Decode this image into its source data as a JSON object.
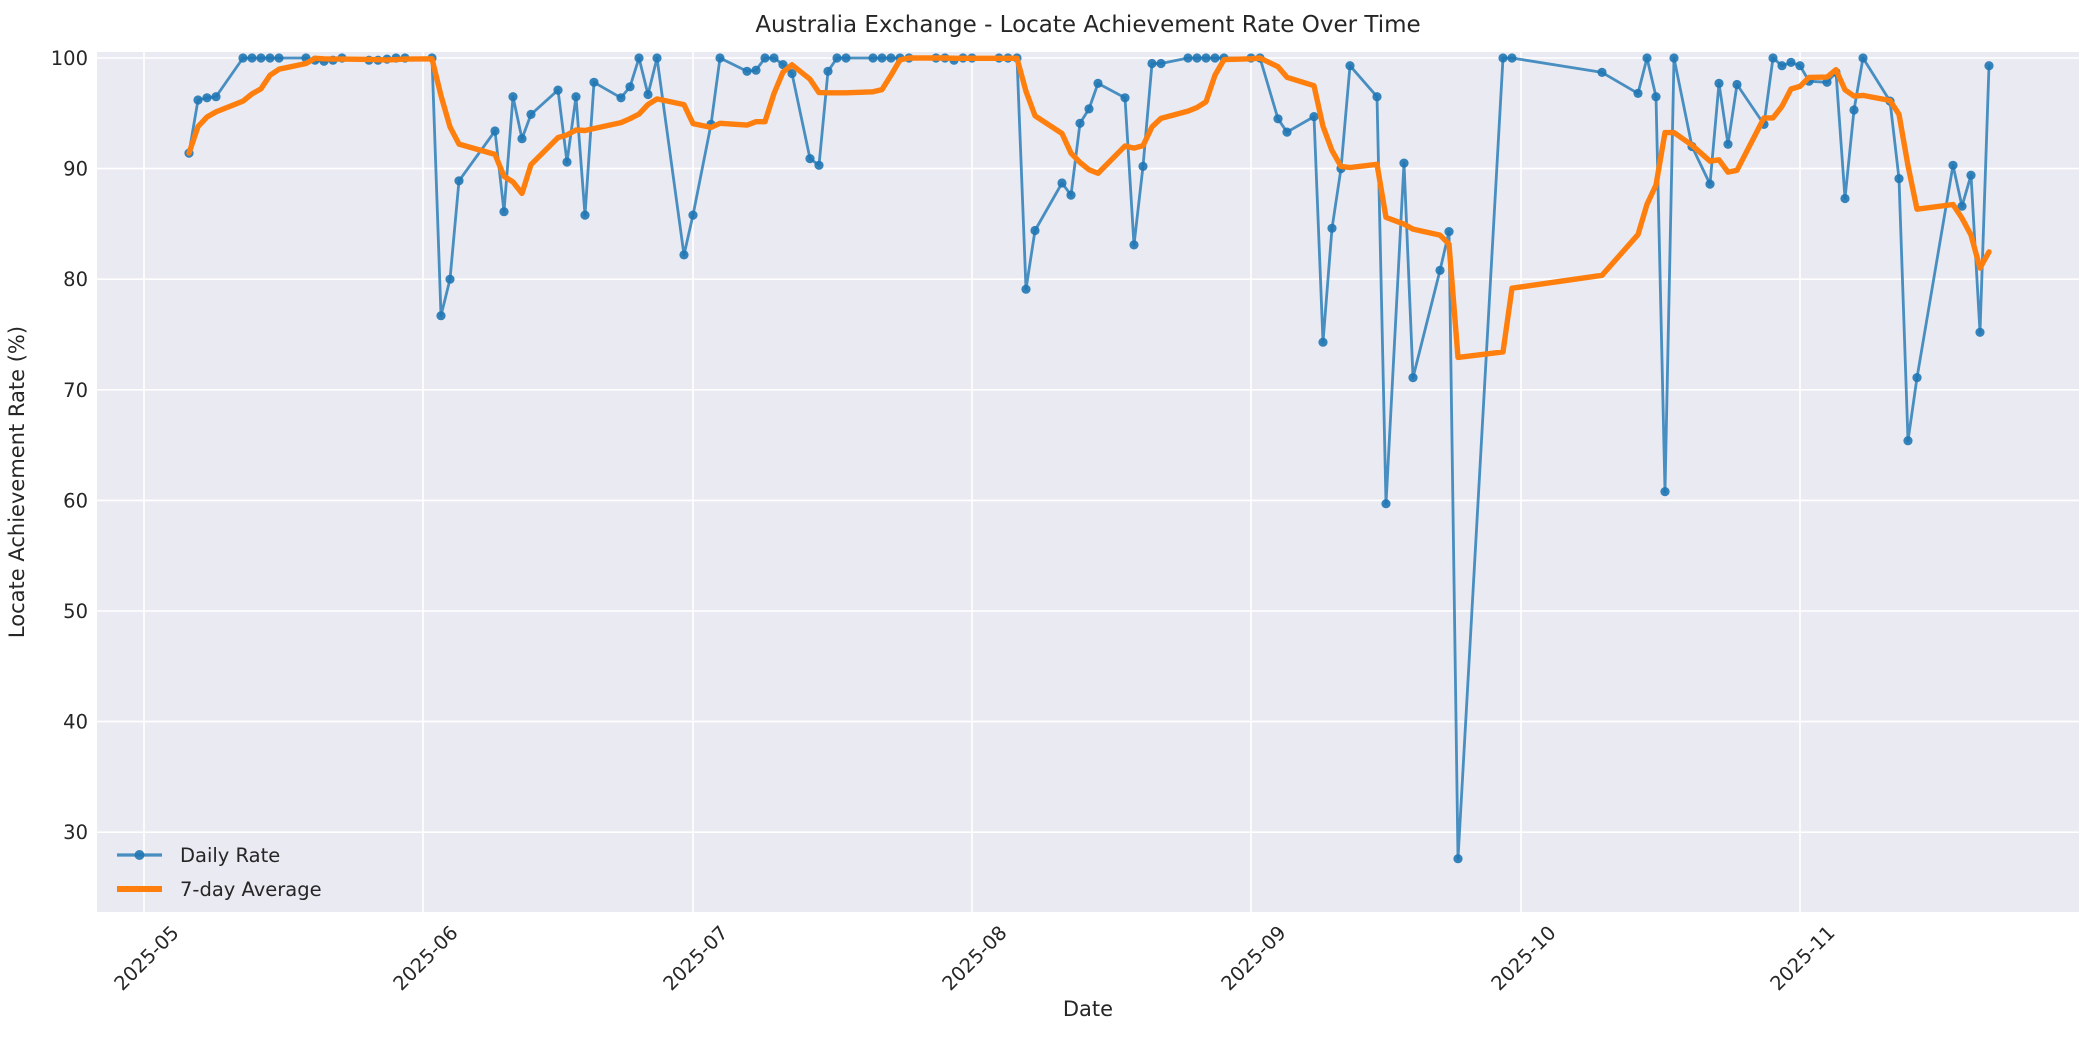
{
  "figure": {
    "title": "Australia Exchange - Locate Achievement Rate Over Time",
    "xlabel": "Date",
    "ylabel": "Locate Achievement Rate (%)"
  },
  "legend": {
    "position": "lower left",
    "items": [
      {
        "label": "Daily Rate",
        "swatch": "line-with-dot-marker"
      },
      {
        "label": "7-day Average",
        "swatch": "thick-line"
      }
    ]
  },
  "colors": {
    "daily_line": "rgba(31,119,180,0.8)",
    "daily_marker": "rgba(31,119,180,0.9)",
    "average_line": "#ff7f0e",
    "plot_background": "#eaeaf2",
    "grid": "#ffffff",
    "text": "#262626",
    "figure_background": "#ffffff"
  },
  "chart_data": {
    "type": "line",
    "title": "Australia Exchange - Locate Achievement Rate Over Time",
    "xlabel": "Date",
    "ylabel": "Locate Achievement Rate (%)",
    "x_tick_labels": [
      "2025-05",
      "2025-06",
      "2025-07",
      "2025-08",
      "2025-09",
      "2025-10",
      "2025-11"
    ],
    "y_ticks": [
      30,
      40,
      50,
      60,
      70,
      80,
      90,
      100
    ],
    "ylim": [
      22.8,
      100.5
    ],
    "xlim": [
      "2025-04-26",
      "2025-12-02"
    ],
    "grid": true,
    "legend_position": "lower left",
    "series": [
      {
        "name": "Daily Rate",
        "color": "#1f77b4",
        "marker": "o",
        "points": [
          [
            "2025-05-06",
            91.4
          ],
          [
            "2025-05-07",
            96.2
          ],
          [
            "2025-05-08",
            96.4
          ],
          [
            "2025-05-09",
            96.5
          ],
          [
            "2025-05-12",
            100
          ],
          [
            "2025-05-13",
            100
          ],
          [
            "2025-05-14",
            100
          ],
          [
            "2025-05-15",
            100
          ],
          [
            "2025-05-16",
            100
          ],
          [
            "2025-05-19",
            100
          ],
          [
            "2025-05-20",
            99.8
          ],
          [
            "2025-05-21",
            99.7
          ],
          [
            "2025-05-22",
            99.8
          ],
          [
            "2025-05-23",
            100
          ],
          [
            "2025-05-26",
            99.8
          ],
          [
            "2025-05-27",
            99.8
          ],
          [
            "2025-05-28",
            99.9
          ],
          [
            "2025-05-29",
            100
          ],
          [
            "2025-05-30",
            100
          ],
          [
            "2025-06-02",
            100
          ],
          [
            "2025-06-03",
            76.7
          ],
          [
            "2025-06-04",
            80.0
          ],
          [
            "2025-06-05",
            88.9
          ],
          [
            "2025-06-09",
            93.4
          ],
          [
            "2025-06-10",
            86.1
          ],
          [
            "2025-06-11",
            96.5
          ],
          [
            "2025-06-12",
            92.7
          ],
          [
            "2025-06-13",
            94.9
          ],
          [
            "2025-06-16",
            97.1
          ],
          [
            "2025-06-17",
            90.6
          ],
          [
            "2025-06-18",
            96.5
          ],
          [
            "2025-06-19",
            85.8
          ],
          [
            "2025-06-20",
            97.8
          ],
          [
            "2025-06-23",
            96.4
          ],
          [
            "2025-06-24",
            97.4
          ],
          [
            "2025-06-25",
            100
          ],
          [
            "2025-06-26",
            96.7
          ],
          [
            "2025-06-27",
            100
          ],
          [
            "2025-06-30",
            82.2
          ],
          [
            "2025-07-01",
            85.8
          ],
          [
            "2025-07-03",
            94.0
          ],
          [
            "2025-07-04",
            100
          ],
          [
            "2025-07-07",
            98.8
          ],
          [
            "2025-07-08",
            98.9
          ],
          [
            "2025-07-09",
            100
          ],
          [
            "2025-07-10",
            100
          ],
          [
            "2025-07-11",
            99.4
          ],
          [
            "2025-07-12",
            98.6
          ],
          [
            "2025-07-14",
            90.9
          ],
          [
            "2025-07-15",
            90.3
          ],
          [
            "2025-07-16",
            98.8
          ],
          [
            "2025-07-17",
            100
          ],
          [
            "2025-07-18",
            100
          ],
          [
            "2025-07-21",
            100
          ],
          [
            "2025-07-22",
            100
          ],
          [
            "2025-07-23",
            100
          ],
          [
            "2025-07-24",
            100
          ],
          [
            "2025-07-25",
            100
          ],
          [
            "2025-07-28",
            100
          ],
          [
            "2025-07-29",
            100
          ],
          [
            "2025-07-30",
            99.8
          ],
          [
            "2025-07-31",
            100
          ],
          [
            "2025-08-01",
            100
          ],
          [
            "2025-08-04",
            100
          ],
          [
            "2025-08-05",
            100
          ],
          [
            "2025-08-06",
            100
          ],
          [
            "2025-08-07",
            79.1
          ],
          [
            "2025-08-08",
            84.4
          ],
          [
            "2025-08-11",
            88.7
          ],
          [
            "2025-08-12",
            87.6
          ],
          [
            "2025-08-13",
            94.1
          ],
          [
            "2025-08-14",
            95.4
          ],
          [
            "2025-08-15",
            97.7
          ],
          [
            "2025-08-18",
            96.4
          ],
          [
            "2025-08-19",
            83.1
          ],
          [
            "2025-08-20",
            90.2
          ],
          [
            "2025-08-21",
            99.5
          ],
          [
            "2025-08-22",
            99.5
          ],
          [
            "2025-08-25",
            100
          ],
          [
            "2025-08-26",
            100
          ],
          [
            "2025-08-27",
            100
          ],
          [
            "2025-08-28",
            100
          ],
          [
            "2025-08-29",
            100
          ],
          [
            "2025-09-01",
            100
          ],
          [
            "2025-09-02",
            100
          ],
          [
            "2025-09-04",
            94.5
          ],
          [
            "2025-09-05",
            93.3
          ],
          [
            "2025-09-08",
            94.7
          ],
          [
            "2025-09-09",
            74.3
          ],
          [
            "2025-09-10",
            84.6
          ],
          [
            "2025-09-11",
            90.0
          ],
          [
            "2025-09-12",
            99.3
          ],
          [
            "2025-09-15",
            96.5
          ],
          [
            "2025-09-16",
            59.7
          ],
          [
            "2025-09-18",
            90.5
          ],
          [
            "2025-09-19",
            71.1
          ],
          [
            "2025-09-22",
            80.8
          ],
          [
            "2025-09-23",
            84.3
          ],
          [
            "2025-09-24",
            27.6
          ],
          [
            "2025-09-29",
            100
          ],
          [
            "2025-09-30",
            100
          ],
          [
            "2025-10-10",
            98.7
          ],
          [
            "2025-10-14",
            96.8
          ],
          [
            "2025-10-15",
            100
          ],
          [
            "2025-10-16",
            96.5
          ],
          [
            "2025-10-17",
            60.8
          ],
          [
            "2025-10-18",
            100
          ],
          [
            "2025-10-20",
            92.0
          ],
          [
            "2025-10-22",
            88.6
          ],
          [
            "2025-10-23",
            97.7
          ],
          [
            "2025-10-24",
            92.2
          ],
          [
            "2025-10-25",
            97.6
          ],
          [
            "2025-10-28",
            94.0
          ],
          [
            "2025-10-29",
            100
          ],
          [
            "2025-10-30",
            99.3
          ],
          [
            "2025-10-31",
            99.6
          ],
          [
            "2025-11-01",
            99.3
          ],
          [
            "2025-11-02",
            97.9
          ],
          [
            "2025-11-04",
            97.8
          ],
          [
            "2025-11-05",
            98.7
          ],
          [
            "2025-11-06",
            87.3
          ],
          [
            "2025-11-07",
            95.3
          ],
          [
            "2025-11-08",
            100
          ],
          [
            "2025-11-11",
            96.1
          ],
          [
            "2025-11-12",
            89.1
          ],
          [
            "2025-11-13",
            65.4
          ],
          [
            "2025-11-14",
            71.1
          ],
          [
            "2025-11-18",
            90.3
          ],
          [
            "2025-11-19",
            86.6
          ],
          [
            "2025-11-20",
            89.4
          ],
          [
            "2025-11-21",
            75.2
          ],
          [
            "2025-11-22",
            99.3
          ]
        ]
      },
      {
        "name": "7-day Average",
        "color": "#ff7f0e",
        "derived_from": "rolling mean of Daily Rate, window 7 samples, min_periods 1"
      }
    ]
  }
}
